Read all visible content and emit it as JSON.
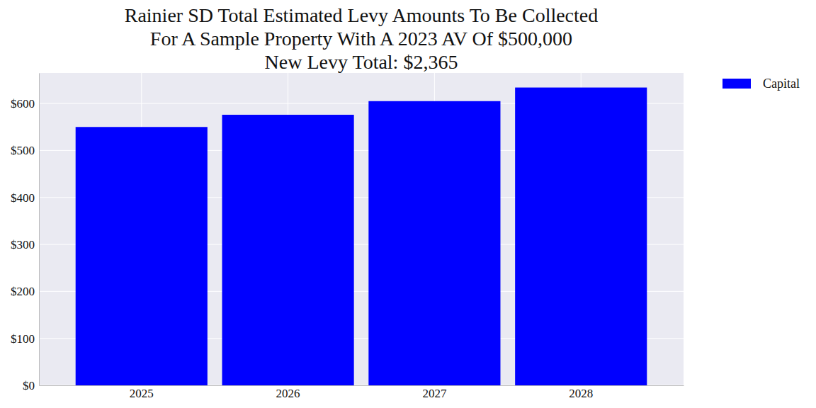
{
  "chart_data": {
    "type": "bar",
    "title": [
      "Rainier SD Total Estimated Levy Amounts To Be Collected",
      "For A Sample Property With A 2023 AV Of $500,000",
      "New Levy Total: $2,365"
    ],
    "categories": [
      "2025",
      "2026",
      "2027",
      "2028"
    ],
    "series": [
      {
        "name": "Capital",
        "color": "#0000ff",
        "values": [
          550,
          576,
          605,
          634
        ]
      }
    ],
    "ylim": [
      0,
      665
    ],
    "yticks": [
      {
        "value": 0,
        "label": "$0"
      },
      {
        "value": 100,
        "label": "$100"
      },
      {
        "value": 200,
        "label": "$200"
      },
      {
        "value": 300,
        "label": "$300"
      },
      {
        "value": 400,
        "label": "$400"
      },
      {
        "value": 500,
        "label": "$500"
      },
      {
        "value": 600,
        "label": "$600"
      }
    ],
    "grid": true,
    "legend": "right"
  }
}
